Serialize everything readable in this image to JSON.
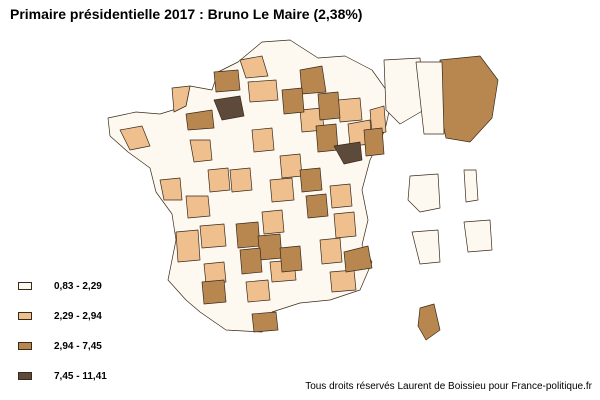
{
  "title": "Primaire présidentielle 2017 : Bruno Le Maire (2,38%)",
  "credit": "Tous droits réservés Laurent de Boissieu pour France-politique.fr",
  "legend": [
    {
      "label": "0,83 - 2,29",
      "color": "#fdf8f0"
    },
    {
      "label": "2,29 - 2,94",
      "color": "#efbf8e"
    },
    {
      "label": "2,94 - 7,45",
      "color": "#b88750"
    },
    {
      "label": "7,45 - 11,41",
      "color": "#5e4a3a"
    }
  ],
  "map": {
    "region": "France métropolitaine, DOM et Corse",
    "border_color": "#3a2a1a"
  }
}
